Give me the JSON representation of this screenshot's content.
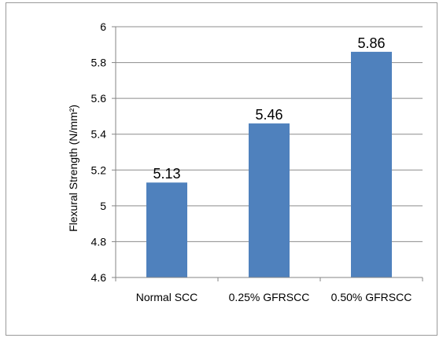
{
  "chart_data": {
    "type": "bar",
    "categories": [
      "Normal SCC",
      "0.25% GFRSCC",
      "0.50% GFRSCC"
    ],
    "values": [
      5.13,
      5.46,
      5.86
    ],
    "data_labels": [
      "5.13",
      "5.46",
      "5.86"
    ],
    "title": "",
    "xlabel": "",
    "ylabel": "Flexural Strength (N/mm²)",
    "ylim": [
      4.6,
      6
    ],
    "yticks": [
      "4.6",
      "4.8",
      "5",
      "5.2",
      "5.4",
      "5.6",
      "5.8",
      "6"
    ],
    "grid": true,
    "legend": "none",
    "colors": {
      "bar": "#4F81BD",
      "grid": "#8C8C8C",
      "axis": "#868686"
    }
  }
}
